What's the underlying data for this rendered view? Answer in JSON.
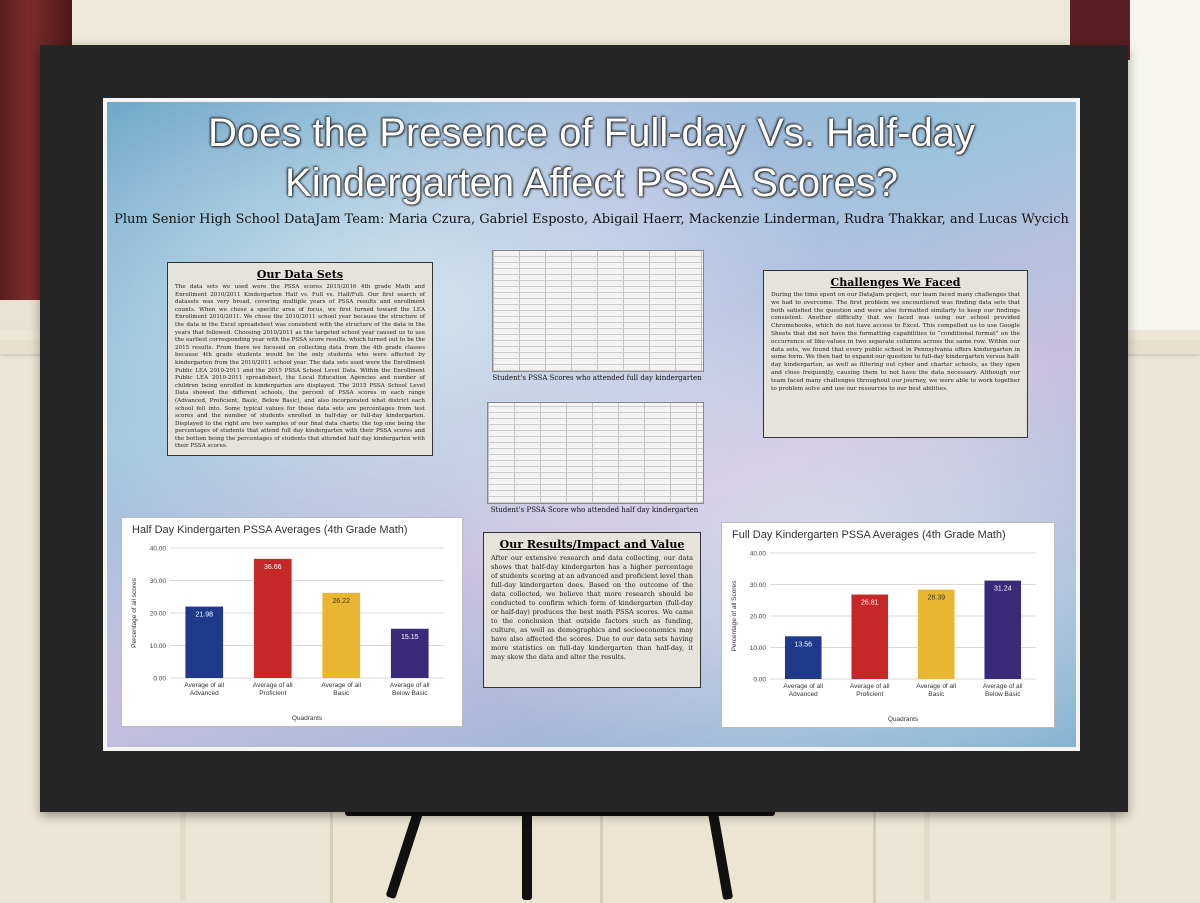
{
  "poster": {
    "title_line1": "Does the Presence of Full-day Vs. Half-day",
    "title_line2": "Kindergarten Affect PSSA Scores?",
    "authors": "Plum Senior High School DataJam Team: Maria Czura, Gabriel Esposto, Abigail Haerr, Mackenzie Linderman, Rudra Thakkar, and Lucas Wycich"
  },
  "data_sets": {
    "heading": "Our Data Sets",
    "body": "The data sets we used were the PSSA scores 2015/2016 4th grade Math and Enrollment 2010/2011 Kindergarten Half vs. Full vs. Half/Full. Our first search of datasets was very broad, covering multiple years of PSSA results and enrollment counts. When we chose a specific area of focus, we first turned toward the LEA Enrollment 2010/2011. We chose the 2010/2011 school year because the structure of the data in the Excel spreadsheet was consistent with the structure of the data in the years that followed. Choosing 2010/2011 as the targeted school year caused us to use the earliest corresponding year with the PSSA score results, which turned out to be the 2015 results. From there we focused on collecting data from the 4th grade classes because 4th grade students would be the only students who were affected by kindergarten from the 2010/2011 school year. The data sets used were the Enrollment Public LEA 2010-2011 and the 2015 PSSA School Level Data. Within the Enrollment Public LEA 2010-2011 spreadsheet, the Local Education Agencies and number of children being enrolled in kindergarten are displayed. The 2015 PSSA School Level Data showed the different schools, the percent of PSSA scores in each range (Advanced, Proficient, Basic, Below Basic), and also incorporated what district each school fell into. Some typical values for these data sets are percentages from test scores and the number of students enrolled in half-day or full-day kindergarten. Displayed to the right are two samples of our final data charts; the top one being the percentages of students that attend full day kindergarten with their PSSA scores and the bottom being the percentages of students that attended half day kindergarten with their PSSA scores."
  },
  "spreadsheets": {
    "top_caption": "Student's PSSA Scores who attended full day kindergarten",
    "bottom_caption": "Student's PSSA Score who attended half day kindergarten"
  },
  "challenges": {
    "heading": "Challenges We Faced",
    "body": "During the time spent on our DataJam project, our team faced many challenges that we had to overcome. The first problem we encountered was finding data sets that both satisfied the question and were also formatted similarly to keep our findings consistent. Another difficulty that we faced was using our school provided Chromebooks, which do not have access to Excel. This compelled us to use Google Sheets that did not have the formatting capabilities to “conditional format” on the occurrence of like-values in two separate columns across the same row. Within our data sets, we found that every public school in Pennsylvania offers kindergarten in some form. We then had to expand our question to full-day kindergarten versus half-day kindergarten, as well as filtering out cyber and charter schools, as they open and close frequently, causing them to not have the data necessary. Although our team faced many challenges throughout our journey, we were able to work together to problem solve and use our resources to our best abilities."
  },
  "results": {
    "heading": "Our Results/Impact and Value",
    "body": "After our extensive research and data collecting, our data shows that half-day kindergarten has a higher percentage of students scoring at an advanced and proficient level than full-day kindergarten does. Based on the outcome of the data collected, we believe that more research should be conducted to confirm which form of kindergarten (full-day or half-day) produces the best math PSSA scores. We came to the conclusion that outside factors such as funding, culture, as well as demographics and socioeconomics may have also affected the scores. Due to our data sets having more statistics on full-day kindergarten than half-day, it may skew the data and alter the results."
  },
  "chart_data": [
    {
      "type": "bar",
      "title": "Half Day Kindergarten PSSA Averages (4th Grade Math)",
      "categories": [
        "Average of all Advanced",
        "Average of all Proficient",
        "Average of all Basic",
        "Average of all Below Basic"
      ],
      "values": [
        21.98,
        36.66,
        26.22,
        15.15
      ],
      "value_labels": [
        "21.98",
        "36.66",
        "26.22",
        "15.15"
      ],
      "colors": [
        "#1f3a8a",
        "#c62828",
        "#e8b631",
        "#3b2a7a"
      ],
      "xlabel": "Quadrants",
      "ylabel": "Percentage of all scores",
      "ylim": [
        0,
        40
      ],
      "yticks": [
        "0.00",
        "10.00",
        "20.00",
        "30.00",
        "40.00"
      ],
      "grid": true
    },
    {
      "type": "bar",
      "title": "Full Day Kindergarten PSSA Averages (4th Grade Math)",
      "categories": [
        "Average of all Advanced",
        "Average of all Proficient",
        "Average of all Basic",
        "Average of all Below Basic"
      ],
      "values": [
        13.56,
        26.81,
        28.39,
        31.24
      ],
      "value_labels": [
        "13.56",
        "26.81",
        "28.39",
        "31.24"
      ],
      "colors": [
        "#1f3a8a",
        "#c62828",
        "#e8b631",
        "#3b2a7a"
      ],
      "xlabel": "Quadrants",
      "ylabel": "Percentage of all Scores",
      "ylim": [
        0,
        40
      ],
      "yticks": [
        "0.00",
        "10.00",
        "20.00",
        "30.00",
        "40.00"
      ],
      "grid": true
    }
  ]
}
